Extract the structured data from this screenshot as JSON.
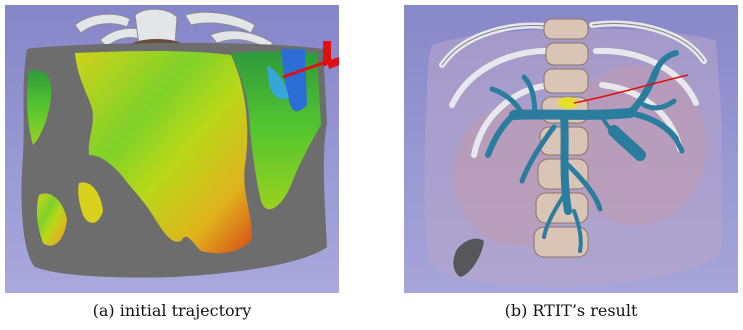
{
  "figure": {
    "panels": [
      {
        "caption": "(a) initial trajectory"
      },
      {
        "caption": "(b) RTIT’s result"
      }
    ]
  },
  "colors": {
    "background": "#8d8dcd",
    "skin_surface": "#6e6e6e",
    "bone": "#d8dadc",
    "vessel": "#2a7d9e",
    "trajectory": "#e01010",
    "target": "#e8e030"
  }
}
